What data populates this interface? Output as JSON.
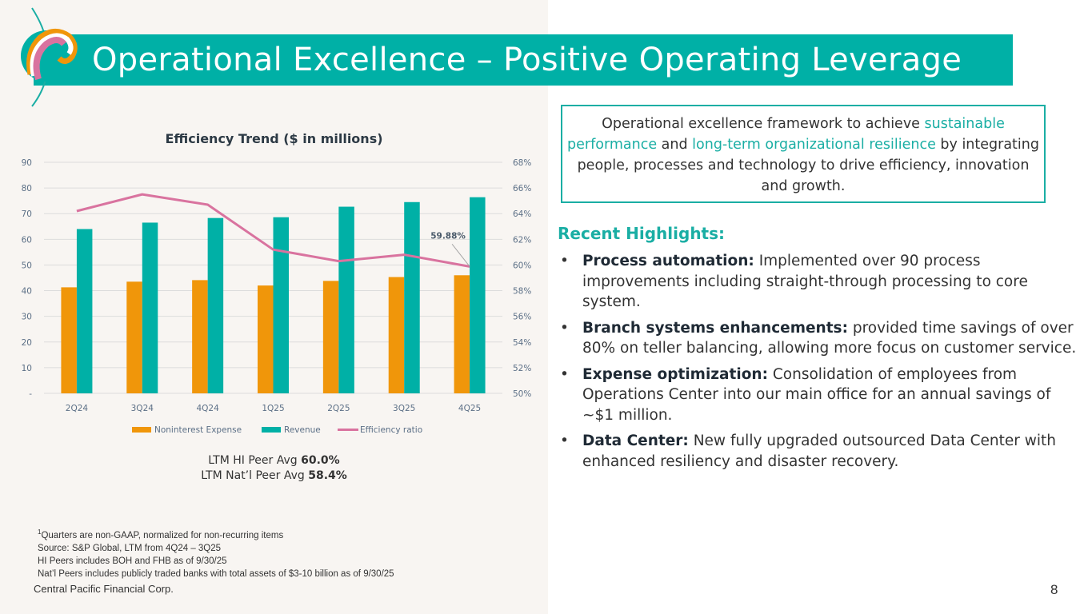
{
  "slide": {
    "title": "Operational Excellence – Positive Operating Leverage",
    "page_number": "8",
    "company": "Central Pacific Financial Corp.",
    "brand_color": "#00b0a6"
  },
  "framework": {
    "parts": [
      {
        "text": "Operational excellence framework to achieve ",
        "highlight": false
      },
      {
        "text": "sustainable performance",
        "highlight": true
      },
      {
        "text": " and ",
        "highlight": false
      },
      {
        "text": "long-term organizational resilience",
        "highlight": true
      },
      {
        "text": " by integrating people, processes and technology to drive efficiency, innovation and growth.",
        "highlight": false
      }
    ]
  },
  "highlights": {
    "title": "Recent Highlights:",
    "bullet": "•",
    "items": [
      {
        "bold": "Process automation:",
        "text": " Implemented over 90 process improvements including straight-through processing to core system."
      },
      {
        "bold": "Branch systems enhancements:",
        "text": " provided time savings of over 80% on teller balancing, allowing more focus on customer service."
      },
      {
        "bold": "Expense optimization:",
        "text": " Consolidation of employees from Operations Center into our main office for an annual savings of ~$1 million."
      },
      {
        "bold": "Data Center:",
        "text": " New fully upgraded outsourced Data Center with enhanced resiliency and disaster recovery."
      }
    ]
  },
  "peers": {
    "hi_label": "LTM HI Peer Avg ",
    "hi_value": "60.0%",
    "natl_label": "LTM Nat’l Peer Avg ",
    "natl_value": "58.4%"
  },
  "footnotes": {
    "sup": "1",
    "line1": "Quarters are non-GAAP, normalized for non-recurring items",
    "line2": "Source: S&P Global, LTM from 4Q24 – 3Q25",
    "line3": "HI Peers includes BOH and FHB as of 9/30/25",
    "line4": "Nat’l Peers includes publicly traded banks with total assets of $3-10 billion as of 9/30/25"
  },
  "chart_data": {
    "type": "bar",
    "title": "Efficiency Trend ($ in millions)",
    "categories": [
      "2Q24",
      "3Q24",
      "4Q24",
      "1Q25",
      "2Q25",
      "3Q25",
      "4Q25"
    ],
    "series": [
      {
        "name": "Noninterest Expense",
        "type": "bar",
        "axis": "left",
        "color": "#f0960a",
        "values": [
          41.3,
          43.5,
          44.1,
          42.0,
          43.8,
          45.3,
          46.0
        ]
      },
      {
        "name": "Revenue",
        "type": "bar",
        "axis": "left",
        "color": "#00b0a6",
        "values": [
          64.0,
          66.5,
          68.3,
          68.6,
          72.7,
          74.5,
          76.4
        ]
      },
      {
        "name": "Efficiency ratio",
        "type": "line",
        "axis": "right",
        "color": "#d9739f",
        "values": [
          64.2,
          65.5,
          64.7,
          61.2,
          60.3,
          60.8,
          59.88
        ]
      }
    ],
    "left_axis": {
      "min": 0,
      "max": 90,
      "ticks": [
        "-",
        "10",
        "20",
        "30",
        "40",
        "50",
        "60",
        "70",
        "80",
        "90"
      ]
    },
    "right_axis": {
      "min": 50,
      "max": 68,
      "ticks": [
        "50%",
        "52%",
        "54%",
        "56%",
        "58%",
        "60%",
        "62%",
        "64%",
        "66%",
        "68%"
      ]
    },
    "annotation": {
      "series": "Efficiency ratio",
      "category": "4Q25",
      "text": "59.88%"
    },
    "grid": true,
    "legend": "bottom"
  }
}
